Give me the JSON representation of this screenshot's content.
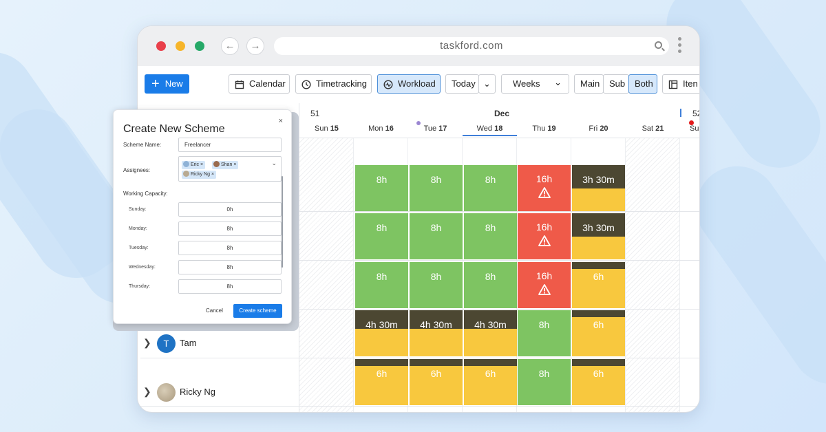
{
  "browser": {
    "url": "taskford.com"
  },
  "toolbar": {
    "new_label": "New",
    "calendar_label": "Calendar",
    "timetracking_label": "Timetracking",
    "workload_label": "Workload",
    "today_label": "Today",
    "weeks_label": "Weeks",
    "main_label": "Main",
    "sub_label": "Sub",
    "both_label": "Both",
    "items_label": "Iten"
  },
  "calendar": {
    "week_num": "51",
    "next_week_num": "52",
    "month": "Dec",
    "days": [
      {
        "name": "Sun",
        "num": "15"
      },
      {
        "name": "Mon",
        "num": "16"
      },
      {
        "name": "Tue",
        "num": "17"
      },
      {
        "name": "Wed",
        "num": "18"
      },
      {
        "name": "Thu",
        "num": "19"
      },
      {
        "name": "Fri",
        "num": "20"
      },
      {
        "name": "Sat",
        "num": "21"
      },
      {
        "name": "Su",
        "num": ""
      }
    ]
  },
  "rows": [
    {
      "cells": [
        {
          "text": "8h",
          "color": "#7ec462"
        },
        {
          "text": "8h",
          "color": "#7ec462"
        },
        {
          "text": "8h",
          "color": "#7ec462"
        },
        {
          "text": "16h",
          "color": "#ef5a49",
          "warning": true
        },
        {
          "text": "3h 30m",
          "color": "#f8c83e",
          "band_fraction": 0.5
        }
      ]
    },
    {
      "cells": [
        {
          "text": "8h",
          "color": "#7ec462"
        },
        {
          "text": "8h",
          "color": "#7ec462"
        },
        {
          "text": "8h",
          "color": "#7ec462"
        },
        {
          "text": "16h",
          "color": "#ef5a49",
          "warning": true
        },
        {
          "text": "3h 30m",
          "color": "#f8c83e",
          "band_fraction": 0.5
        }
      ]
    },
    {
      "cells": [
        {
          "text": "8h",
          "color": "#7ec462"
        },
        {
          "text": "8h",
          "color": "#7ec462"
        },
        {
          "text": "8h",
          "color": "#7ec462"
        },
        {
          "text": "16h",
          "color": "#ef5a49",
          "warning": true
        },
        {
          "text": "6h",
          "color": "#f8c83e",
          "band_fraction": 0.15
        }
      ]
    },
    {
      "cells": [
        {
          "text": "4h 30m",
          "color": "#f8c83e",
          "band_fraction": 0.4
        },
        {
          "text": "4h 30m",
          "color": "#f8c83e",
          "band_fraction": 0.4
        },
        {
          "text": "4h 30m",
          "color": "#f8c83e",
          "band_fraction": 0.4
        },
        {
          "text": "8h",
          "color": "#7ec462"
        },
        {
          "text": "6h",
          "color": "#f8c83e",
          "band_fraction": 0.15
        }
      ]
    },
    {
      "cells": [
        {
          "text": "6h",
          "color": "#f8c83e",
          "band_fraction": 0.15
        },
        {
          "text": "6h",
          "color": "#f8c83e",
          "band_fraction": 0.15
        },
        {
          "text": "6h",
          "color": "#f8c83e",
          "band_fraction": 0.15
        },
        {
          "text": "8h",
          "color": "#7ec462"
        },
        {
          "text": "6h",
          "color": "#f8c83e",
          "band_fraction": 0.15
        }
      ]
    }
  ],
  "people": [
    {
      "initial": "T",
      "name": "Tam",
      "avatar_color": "#1f73c4"
    },
    {
      "initial": "",
      "name": "Ricky Ng",
      "avatar_color": "#b8aa92"
    }
  ],
  "modal": {
    "title": "Create New Scheme",
    "close": "×",
    "scheme_name_label": "Scheme Name:",
    "scheme_name_value": "Freelancer",
    "assignees_label": "Assignees:",
    "assignees": [
      {
        "name": "Eric",
        "remove": "×"
      },
      {
        "name": "Shan",
        "remove": "×"
      },
      {
        "name": "Ricky Ng",
        "remove": "×"
      }
    ],
    "capacity_label": "Working Capacity:",
    "capacity": [
      {
        "day": "Sunday:",
        "value": "0h"
      },
      {
        "day": "Monday:",
        "value": "8h"
      },
      {
        "day": "Tuesday:",
        "value": "8h"
      },
      {
        "day": "Wednesday:",
        "value": "8h"
      },
      {
        "day": "Thursday:",
        "value": "8h"
      }
    ],
    "cancel_label": "Cancel",
    "create_label": "Create scheme"
  },
  "colors": {
    "accent": "#1a7ce8",
    "green": "#7ec462",
    "red": "#ef5a49",
    "yellow": "#f8c83e",
    "dark_band": "#4c4732"
  }
}
